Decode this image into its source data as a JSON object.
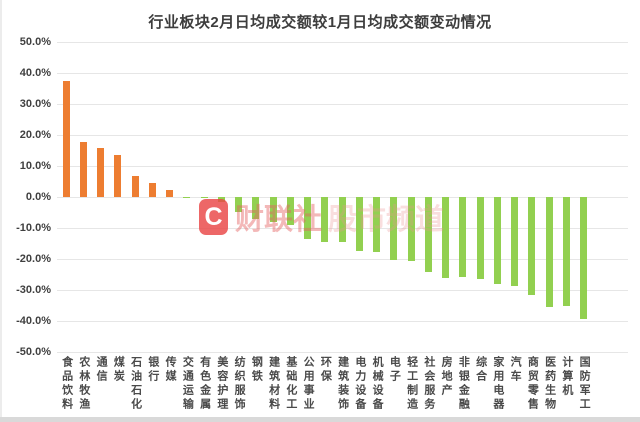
{
  "title": "行业板块2月日均成交额较1月日均成交额变动情况",
  "watermark": {
    "logo_letter": "C",
    "brand": "财联社",
    "suffix": "股市频道"
  },
  "colors": {
    "positive_bar": "#ED7D31",
    "negative_bar": "#92D050",
    "gridline": "#E6E6E6",
    "title_text": "#3D3D3D",
    "axis_text": "#3F3F3F",
    "watermark_red": "#E94646"
  },
  "chart_data": {
    "type": "bar",
    "title": "行业板块2月日均成交额较1月日均成交额变动情况",
    "xlabel": "",
    "ylabel": "",
    "ylim": [
      -50,
      50
    ],
    "grid": true,
    "legend": "none",
    "y_tick_labels": [
      "50.0%",
      "40.0%",
      "30.0%",
      "20.0%",
      "10.0%",
      "0.0%",
      "-10.0%",
      "-20.0%",
      "-30.0%",
      "-40.0%",
      "-50.0%"
    ],
    "value_unit": "percent",
    "categories": [
      "食品饮料",
      "农林牧渔",
      "通信",
      "煤炭",
      "石油石化",
      "银行",
      "传媒",
      "交通运输",
      "有色金属",
      "美容护理",
      "纺织服饰",
      "钢铁",
      "建筑材料",
      "基础化工",
      "公用事业",
      "环保",
      "建筑装饰",
      "电力设备",
      "机械设备",
      "电子",
      "轻工制造",
      "社会服务",
      "房地产",
      "非银金融",
      "综合",
      "家用电器",
      "汽车",
      "商贸零售",
      "医药生物",
      "计算机",
      "国防军工"
    ],
    "values": [
      37.4,
      17.9,
      15.9,
      13.4,
      6.7,
      4.6,
      2.2,
      -0.1,
      -0.3,
      -1.7,
      -4.8,
      -7.0,
      -8.0,
      -8.9,
      -13.4,
      -14.6,
      -14.4,
      -17.3,
      -17.8,
      -20.4,
      -20.5,
      -24.1,
      -26.1,
      -25.8,
      -26.6,
      -28.0,
      -28.7,
      -31.7,
      -35.5,
      -35.2,
      -39.2
    ],
    "positive_color": "#ED7D31",
    "negative_color": "#92D050"
  }
}
